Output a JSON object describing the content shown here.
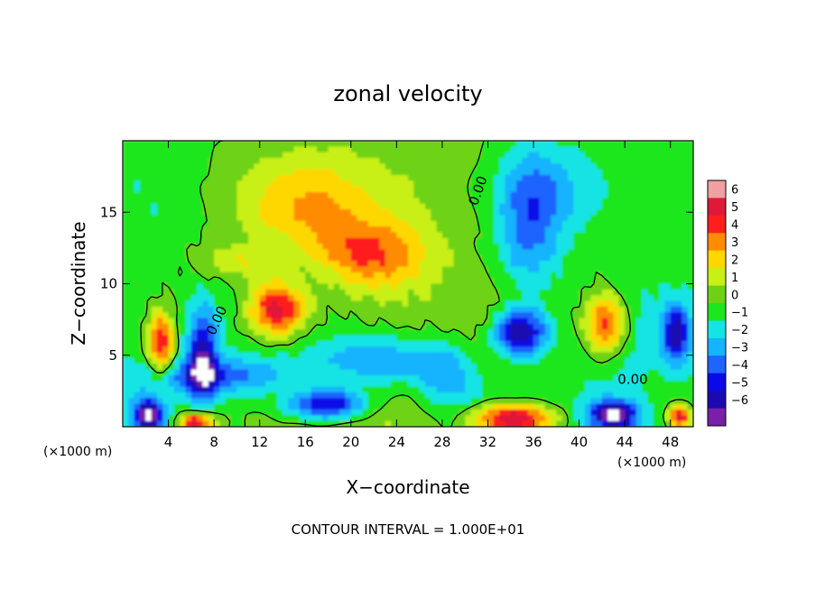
{
  "chart_data": {
    "type": "heatmap",
    "title": "zonal velocity",
    "xlabel": "X−coordinate",
    "ylabel": "Z−coordinate",
    "x_unit_left": "(×1000 m)",
    "x_unit_right": "(×1000 m)",
    "footer": "CONTOUR INTERVAL = 1.000E+01",
    "xlim": [
      0,
      50
    ],
    "ylim": [
      0,
      20
    ],
    "x_ticks": [
      4,
      8,
      12,
      16,
      20,
      24,
      28,
      32,
      36,
      40,
      44,
      48
    ],
    "x_tick_labels": [
      "4",
      "8",
      "12",
      "16",
      "20",
      "24",
      "28",
      "32",
      "36",
      "40",
      "44",
      "48"
    ],
    "y_ticks": [
      5,
      10,
      15
    ],
    "y_tick_labels": [
      "5",
      "10",
      "15"
    ],
    "contour_labels": [
      {
        "text": "0.00",
        "x": 8.6,
        "y": 7.3
      },
      {
        "text": "0.00",
        "x": 31.5,
        "y": 16.4
      },
      {
        "text": "0.00",
        "x": 44.7,
        "y": 3.0
      }
    ],
    "colorbar": {
      "levels": [
        -6,
        -5,
        -4,
        -3,
        -2,
        -1,
        0,
        1,
        2,
        3,
        4,
        5,
        6
      ],
      "labels": [
        "6",
        "5",
        "4",
        "3",
        "2",
        "1",
        "0",
        "−1",
        "−2",
        "−3",
        "−4",
        "−5",
        "−6"
      ],
      "colors": [
        "#7a1fa8",
        "#1a0ab0",
        "#0a0ae8",
        "#1e64ff",
        "#14b4ff",
        "#14e4e4",
        "#1ee61e",
        "#6ed214",
        "#c8f014",
        "#ffd700",
        "#ff8c00",
        "#ff1e1e",
        "#e0193a",
        "#f0a0a0"
      ]
    },
    "features": [
      {
        "x": 13.5,
        "y": 8.2,
        "rx": 3.4,
        "ry": 2.5,
        "v": 7.5
      },
      {
        "x": 13.5,
        "y": 8.2,
        "rx": 5.5,
        "ry": 4.2,
        "v": -2.0
      },
      {
        "x": 3.3,
        "y": 5.8,
        "rx": 1.4,
        "ry": 2.9,
        "v": 6.0
      },
      {
        "x": 7.0,
        "y": 5.0,
        "rx": 1.6,
        "ry": 4.0,
        "v": -5.5
      },
      {
        "x": 34.8,
        "y": 6.6,
        "rx": 3.1,
        "ry": 2.2,
        "v": -7.5
      },
      {
        "x": 34.8,
        "y": 7.0,
        "rx": 5.0,
        "ry": 3.8,
        "v": 2.0
      },
      {
        "x": 42.3,
        "y": 7.1,
        "rx": 2.6,
        "ry": 3.0,
        "v": 7.5
      },
      {
        "x": 42.5,
        "y": 6.6,
        "rx": 4.4,
        "ry": 4.4,
        "v": -3.0
      },
      {
        "x": 48.5,
        "y": 6.5,
        "rx": 1.5,
        "ry": 2.6,
        "v": -5.5
      },
      {
        "x": 18.0,
        "y": 1.5,
        "rx": 4.8,
        "ry": 1.5,
        "v": -7.5
      },
      {
        "x": 18.5,
        "y": 1.5,
        "rx": 7.0,
        "ry": 2.8,
        "v": 2.5
      },
      {
        "x": 34.3,
        "y": 0.6,
        "rx": 4.5,
        "ry": 1.4,
        "v": 8.0
      },
      {
        "x": 34.3,
        "y": 1.0,
        "rx": 7.0,
        "ry": 3.0,
        "v": -2.0
      },
      {
        "x": 6.5,
        "y": 0.3,
        "rx": 1.8,
        "ry": 0.8,
        "v": 7.0
      },
      {
        "x": 2.3,
        "y": 0.8,
        "rx": 1.8,
        "ry": 1.5,
        "v": -7.0
      },
      {
        "x": 43.0,
        "y": 0.8,
        "rx": 2.8,
        "ry": 1.3,
        "v": -7.0
      },
      {
        "x": 48.8,
        "y": 0.7,
        "rx": 1.2,
        "ry": 1.0,
        "v": 6.5
      },
      {
        "x": 8.0,
        "y": 3.5,
        "rx": 9.0,
        "ry": 1.6,
        "v": -3.5
      },
      {
        "x": 22.0,
        "y": 4.5,
        "rx": 7.0,
        "ry": 2.5,
        "v": -3.5
      },
      {
        "x": 28.5,
        "y": 3.5,
        "rx": 3.5,
        "ry": 3.0,
        "v": -2.5
      },
      {
        "x": 16.0,
        "y": 15.5,
        "rx": 8.0,
        "ry": 4.5,
        "v": 3.0
      },
      {
        "x": 22.0,
        "y": 12.0,
        "rx": 6.0,
        "ry": 3.0,
        "v": 3.5
      },
      {
        "x": 10.0,
        "y": 11.5,
        "rx": 4.5,
        "ry": 1.5,
        "v": 2.0
      },
      {
        "x": 35.5,
        "y": 13.5,
        "rx": 3.5,
        "ry": 7.0,
        "v": -3.0
      },
      {
        "x": 37.5,
        "y": 16.5,
        "rx": 6.0,
        "ry": 4.0,
        "v": -2.0
      },
      {
        "x": 3.0,
        "y": 16.0,
        "rx": 4.0,
        "ry": 4.0,
        "v": -0.5
      }
    ]
  }
}
